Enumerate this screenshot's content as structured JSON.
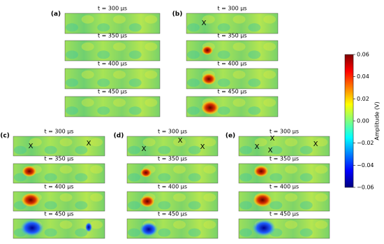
{
  "panels": [
    {
      "label": "(a)",
      "frames": [
        {
          "time": "t = 300 μs"
        },
        {
          "time": "t = 350 μs"
        },
        {
          "time": "t = 400 μs"
        },
        {
          "time": "t = 450 μs"
        }
      ]
    },
    {
      "label": "(b)",
      "frames": [
        {
          "time": "t = 300 μs",
          "markers": [
            "X"
          ]
        },
        {
          "time": "t = 350 μs"
        },
        {
          "time": "t = 400 μs"
        },
        {
          "time": "t = 450 μs"
        }
      ]
    },
    {
      "label": "(c)",
      "frames": [
        {
          "time": "t = 300 μs",
          "markers": [
            "X",
            "X"
          ]
        },
        {
          "time": "t = 350 μs"
        },
        {
          "time": "t = 400 μs"
        },
        {
          "time": "t = 450 μs"
        }
      ]
    },
    {
      "label": "(d)",
      "frames": [
        {
          "time": "t = 300 μs",
          "markers": [
            "X",
            "X",
            "X"
          ]
        },
        {
          "time": "t = 350 μs"
        },
        {
          "time": "t = 400 μs"
        },
        {
          "time": "t = 450 μs"
        }
      ]
    },
    {
      "label": "(e)",
      "frames": [
        {
          "time": "t = 300 μs",
          "markers": [
            "X",
            "X",
            "X",
            "X"
          ]
        },
        {
          "time": "t = 350 μs"
        },
        {
          "time": "t = 400 μs"
        },
        {
          "time": "t = 450 μs"
        }
      ]
    }
  ],
  "colorbar": {
    "label": "Amplitude (V)",
    "ylim": [
      -0.06,
      0.06
    ],
    "yticks": [
      0.06,
      0.04,
      0.02,
      {
        "value": 0,
        "label": "0.00"
      },
      {
        "value": -0.02,
        "label": "−0.02"
      },
      {
        "value": -0.04,
        "label": "−0.04"
      },
      {
        "value": -0.06,
        "label": "−0.06"
      }
    ]
  }
}
